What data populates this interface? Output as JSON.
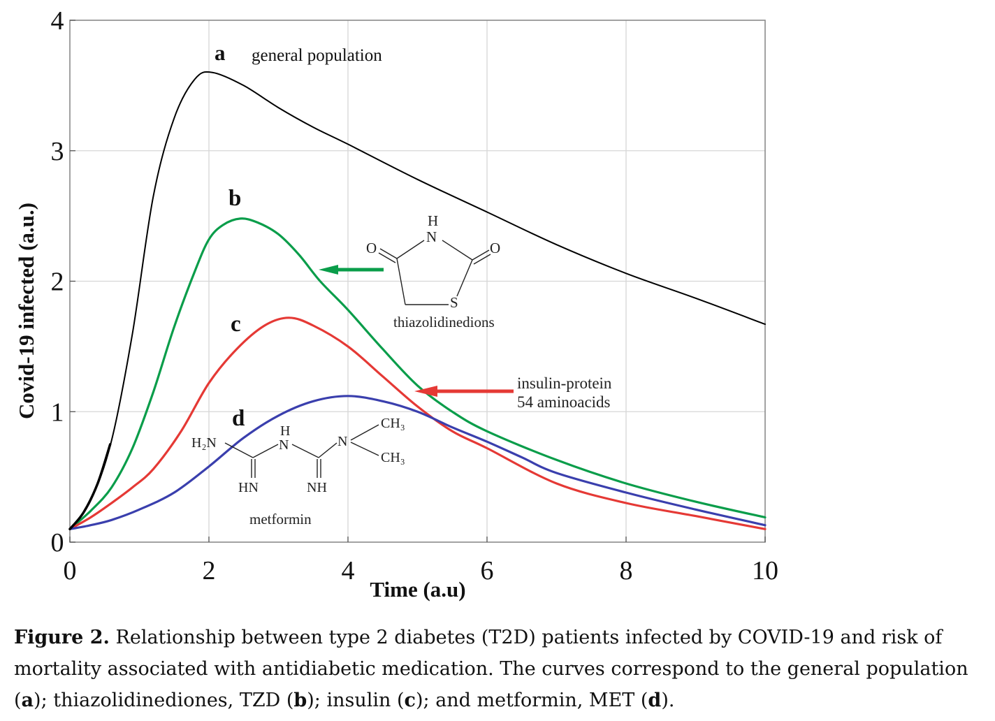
{
  "chart_data": {
    "type": "line",
    "xlabel": "Time (a.u)",
    "ylabel": "Covid-19 infected (a.u.)",
    "xlim": [
      0,
      10
    ],
    "ylim": [
      0,
      4
    ],
    "xticks": [
      "0",
      "2",
      "4",
      "6",
      "8",
      "10"
    ],
    "yticks": [
      "0",
      "1",
      "2",
      "3",
      "4"
    ],
    "grid": true,
    "series": [
      {
        "letter": "a",
        "name": "general population",
        "color": "#000000",
        "x": [
          0,
          0.3,
          0.6,
          0.9,
          1.2,
          1.5,
          1.8,
          2.05,
          2.5,
          3,
          3.5,
          4,
          5,
          6,
          7,
          8,
          9,
          10
        ],
        "y": [
          0.1,
          0.32,
          0.78,
          1.6,
          2.65,
          3.25,
          3.55,
          3.6,
          3.5,
          3.33,
          3.18,
          3.05,
          2.78,
          2.53,
          2.28,
          2.06,
          1.87,
          1.67
        ]
      },
      {
        "letter": "b",
        "name": "",
        "color": "#0a9d4a",
        "x": [
          0,
          0.3,
          0.6,
          0.9,
          1.2,
          1.5,
          1.8,
          2.0,
          2.2,
          2.45,
          2.7,
          3,
          3.3,
          3.6,
          4,
          4.5,
          5,
          5.5,
          6,
          7,
          8,
          9,
          10
        ],
        "y": [
          0.1,
          0.24,
          0.42,
          0.72,
          1.15,
          1.65,
          2.08,
          2.32,
          2.43,
          2.48,
          2.45,
          2.36,
          2.2,
          2.0,
          1.78,
          1.48,
          1.2,
          1.0,
          0.85,
          0.63,
          0.45,
          0.31,
          0.19
        ]
      },
      {
        "letter": "c",
        "name": "",
        "color": "#e53935",
        "x": [
          0,
          0.3,
          0.6,
          0.9,
          1.2,
          1.6,
          2.0,
          2.4,
          2.8,
          3.15,
          3.5,
          4,
          4.5,
          5,
          5.5,
          6,
          7,
          8,
          9,
          10
        ],
        "y": [
          0.1,
          0.19,
          0.3,
          0.42,
          0.56,
          0.85,
          1.22,
          1.48,
          1.66,
          1.72,
          1.66,
          1.5,
          1.27,
          1.04,
          0.85,
          0.72,
          0.45,
          0.3,
          0.2,
          0.1
        ]
      },
      {
        "letter": "d",
        "name": "",
        "color": "#3a3fad",
        "x": [
          0,
          0.3,
          0.6,
          1.0,
          1.5,
          2.0,
          2.5,
          3.0,
          3.5,
          4.0,
          4.5,
          5,
          5.5,
          6,
          6.5,
          7,
          8,
          9,
          10
        ],
        "y": [
          0.1,
          0.13,
          0.17,
          0.25,
          0.38,
          0.58,
          0.8,
          0.97,
          1.08,
          1.12,
          1.08,
          1.0,
          0.88,
          0.77,
          0.65,
          0.53,
          0.38,
          0.25,
          0.13
        ]
      }
    ],
    "early_segment": {
      "color": "#000000",
      "x": [
        0,
        0.2,
        0.4,
        0.58
      ],
      "y": [
        0.1,
        0.23,
        0.45,
        0.75
      ]
    }
  },
  "annotations": {
    "a_letter": "a",
    "a_label": "general population",
    "b_letter": "b",
    "c_letter": "c",
    "d_letter": "d",
    "tzd_label": "thiazolidinedions",
    "insulin_line1": "insulin-protein",
    "insulin_line2": "54 aminoacids",
    "metformin_label": "metformin",
    "arrow_colors": {
      "tzd": "#0a9d4a",
      "insulin": "#e53935"
    }
  },
  "molecules": {
    "tzd": {
      "H": "H",
      "N": "N",
      "O_left": "O",
      "O_right": "O",
      "S": "S"
    },
    "metformin": {
      "H2N": "H₂N",
      "H": "H",
      "N1": "N",
      "N2": "N",
      "CH3_top": "CH₃",
      "CH3_bottom": "CH₃",
      "HN": "HN",
      "NH": "NH"
    }
  },
  "caption": {
    "label": "Figure 2.",
    "lines": [
      " Relationship between type 2 diabetes (T2D) patients infected by COVID-19 and risk of",
      "mortality associated with antidiabetic medication. The curves correspond to the general population"
    ],
    "parts": [
      "(",
      "a",
      "); thiazolidinediones, TZD (",
      "b",
      "); insulin (",
      "c",
      "); and metformin, MET (",
      "d",
      ")."
    ]
  }
}
